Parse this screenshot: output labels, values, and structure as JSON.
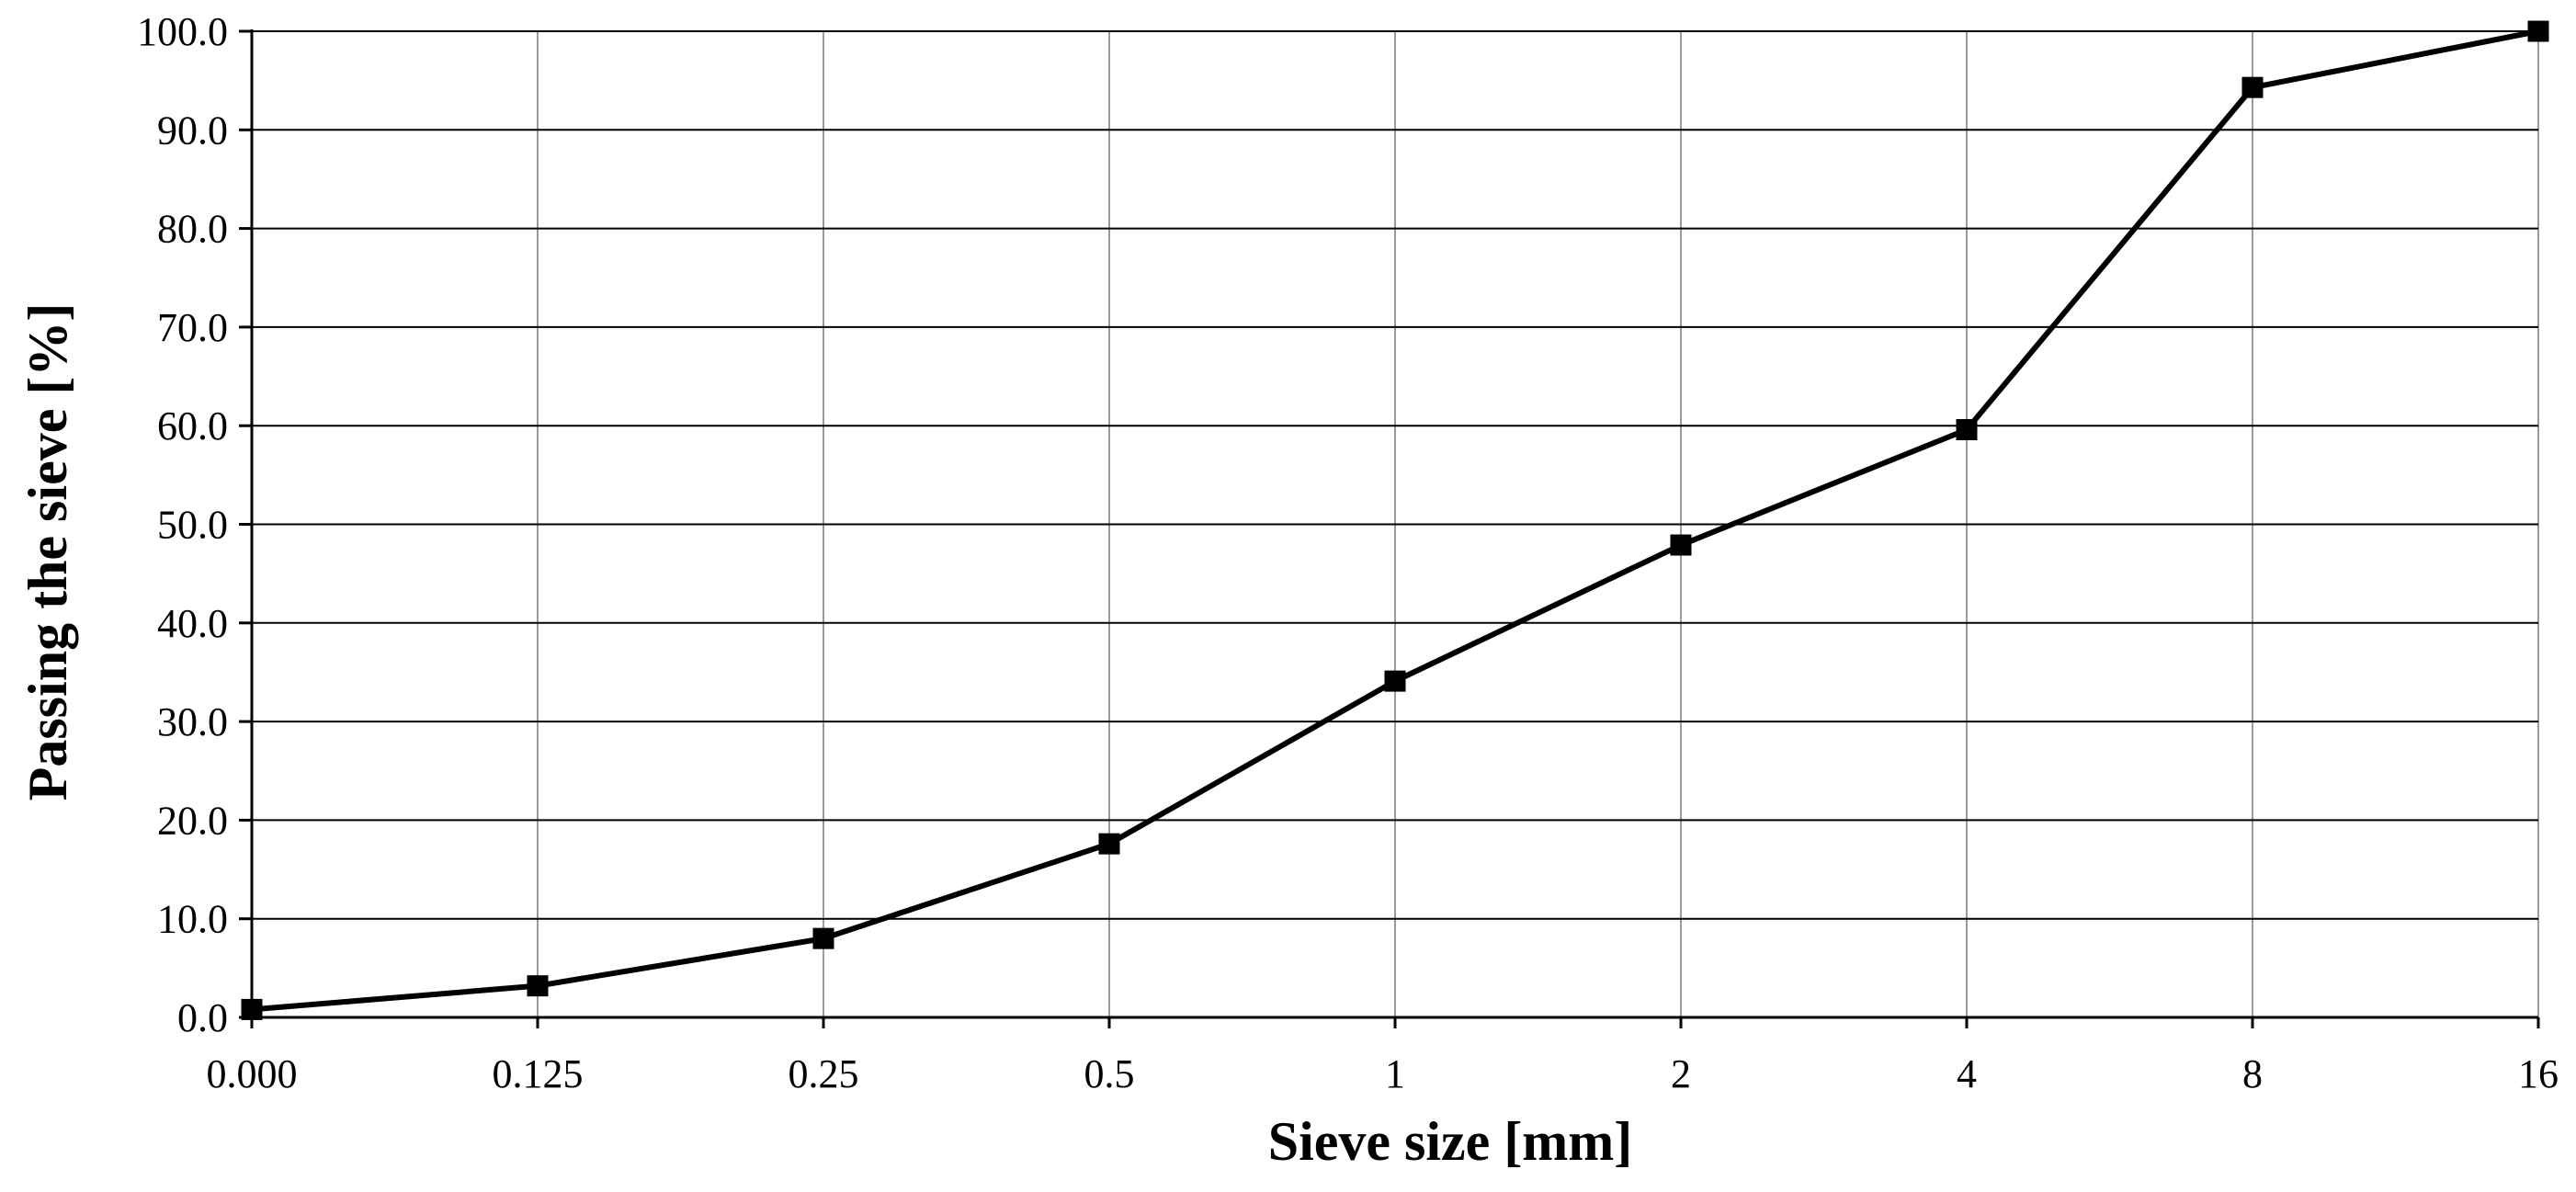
{
  "chart_data": {
    "type": "line",
    "title": "",
    "xlabel": "Sieve size [mm]",
    "ylabel": "Passing the sieve [%]",
    "categories": [
      "0.000",
      "0.125",
      "0.25",
      "0.5",
      "1",
      "2",
      "4",
      "8",
      "16"
    ],
    "ylim": [
      0,
      100
    ],
    "y_ticks": [
      "0.0",
      "10.0",
      "20.0",
      "30.0",
      "40.0",
      "50.0",
      "60.0",
      "70.0",
      "80.0",
      "90.0",
      "100.0"
    ],
    "grid": true,
    "legend": "none",
    "series": [
      {
        "values": [
          0.8,
          3.2,
          8.0,
          17.6,
          34.1,
          47.9,
          59.6,
          94.3,
          100.0
        ],
        "marker": "square",
        "color": "#000000"
      }
    ]
  }
}
